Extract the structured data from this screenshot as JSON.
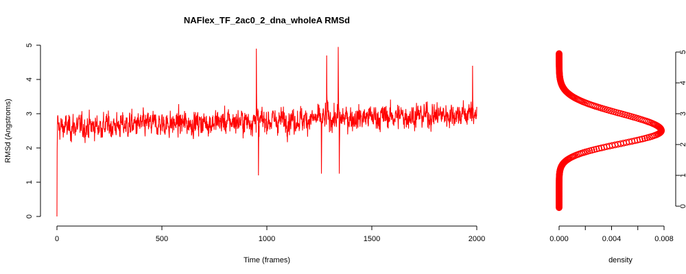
{
  "chart_data": [
    {
      "type": "line",
      "title": "NAFlex_TF_2ac0_2_dna_wholeA RMSd",
      "xlabel": "Time (frames)",
      "ylabel": "RMSd (Angstroms)",
      "xlim": [
        0,
        2000
      ],
      "ylim": [
        0,
        5
      ],
      "xticks": [
        0,
        500,
        1000,
        1500,
        2000
      ],
      "yticks": [
        0,
        1,
        2,
        3,
        4,
        5
      ],
      "series_color": "#ff0000",
      "grid": false,
      "series": [
        {
          "frames": 2000,
          "start_value": 0.0,
          "mean_start": 2.6,
          "mean_end": 3.0,
          "typical_min": 1.5,
          "typical_max": 4.0,
          "spikes": [
            {
              "x": 950,
              "y": 4.9
            },
            {
              "x": 1340,
              "y": 4.95
            },
            {
              "x": 1285,
              "y": 4.7
            },
            {
              "x": 1260,
              "y": 1.25
            },
            {
              "x": 1345,
              "y": 1.25
            },
            {
              "x": 960,
              "y": 1.2
            },
            {
              "x": 1980,
              "y": 4.4
            }
          ]
        }
      ]
    },
    {
      "type": "scatter",
      "xlabel": "density",
      "xlim": [
        0,
        0.008
      ],
      "ylim": [
        0,
        5
      ],
      "xticks": [
        0.0,
        0.004,
        0.008
      ],
      "xtick_labels": [
        "0.000",
        "0.004",
        "0.008"
      ],
      "yticks": [
        0,
        1,
        2,
        3,
        4,
        5
      ],
      "y_axis_side": "right",
      "series_color": "#ff0000",
      "density_peak_x": 0.0078,
      "density_peak_y": 2.45,
      "y_range": [
        -0.05,
        4.95
      ]
    }
  ]
}
